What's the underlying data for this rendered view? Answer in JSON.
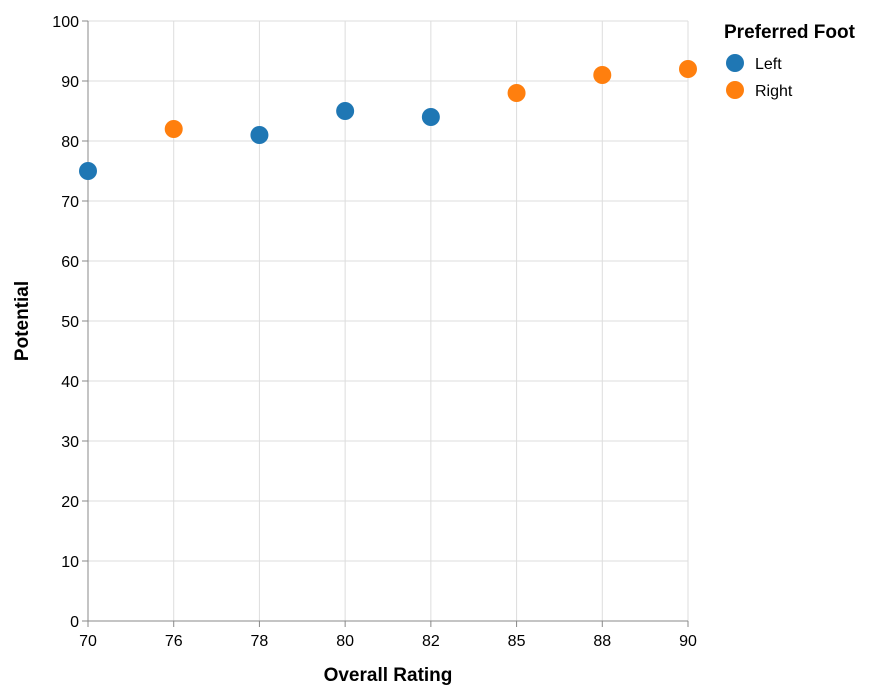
{
  "chart_data": {
    "type": "scatter",
    "xlabel": "Overall Rating",
    "ylabel": "Potential",
    "x_scale": "point",
    "x_categories": [
      "70",
      "76",
      "78",
      "80",
      "82",
      "85",
      "88",
      "90"
    ],
    "ylim": [
      0,
      100
    ],
    "y_ticks": [
      0,
      10,
      20,
      30,
      40,
      50,
      60,
      70,
      80,
      90,
      100
    ],
    "grid": true,
    "legend": {
      "title": "Preferred Foot",
      "placement": "top-right",
      "entries": [
        {
          "label": "Left",
          "color": "#1f77b4"
        },
        {
          "label": "Right",
          "color": "#ff7f0e"
        }
      ]
    },
    "points": [
      {
        "x": "70",
        "y": 75,
        "foot": "Left"
      },
      {
        "x": "76",
        "y": 82,
        "foot": "Right"
      },
      {
        "x": "78",
        "y": 81,
        "foot": "Left"
      },
      {
        "x": "80",
        "y": 85,
        "foot": "Left"
      },
      {
        "x": "82",
        "y": 84,
        "foot": "Left"
      },
      {
        "x": "85",
        "y": 88,
        "foot": "Right"
      },
      {
        "x": "88",
        "y": 91,
        "foot": "Right"
      },
      {
        "x": "90",
        "y": 92,
        "foot": "Right"
      }
    ],
    "colors": {
      "Left": "#1f77b4",
      "Right": "#ff7f0e",
      "grid": "#dddddd",
      "axis": "#888888"
    }
  }
}
